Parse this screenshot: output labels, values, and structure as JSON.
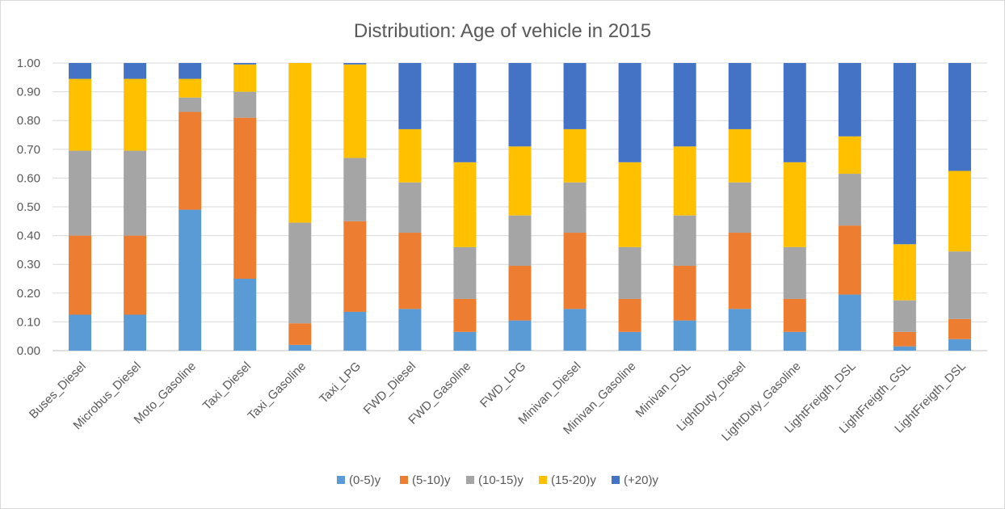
{
  "chart_data": {
    "type": "bar",
    "stacked": true,
    "title": "Distribution: Age of vehicle in 2015",
    "xlabel": "",
    "ylabel": "",
    "ylim": [
      0,
      1
    ],
    "yticks": [
      "0.00",
      "0.10",
      "0.20",
      "0.30",
      "0.40",
      "0.50",
      "0.60",
      "0.70",
      "0.80",
      "0.90",
      "1.00"
    ],
    "grid": true,
    "legend_position": "bottom",
    "categories": [
      "Buses_Diesel",
      "Microbus_Diesel",
      "Moto_Gasoline",
      "Taxi_Diesel",
      "Taxi_Gasoline",
      "Taxi_LPG",
      "FWD_Diesel",
      "FWD_Gasoline",
      "FWD_LPG",
      "Minivan_Diesel",
      "Minivan_Gasoline",
      "Minivan_DSL",
      "LightDuty_Diesel",
      "LightDuty_Gasoline",
      "LightFreigth_DSL",
      "LightFreigth_GSL",
      "LightFreigth_DSL"
    ],
    "series": [
      {
        "name": "(0-5)y",
        "color": "#5B9BD5",
        "values": [
          0.125,
          0.125,
          0.49,
          0.25,
          0.02,
          0.135,
          0.145,
          0.065,
          0.105,
          0.145,
          0.065,
          0.105,
          0.145,
          0.065,
          0.195,
          0.015,
          0.04
        ]
      },
      {
        "name": "(5-10)y",
        "color": "#ED7D31",
        "values": [
          0.275,
          0.275,
          0.34,
          0.56,
          0.075,
          0.315,
          0.265,
          0.115,
          0.19,
          0.265,
          0.115,
          0.19,
          0.265,
          0.115,
          0.24,
          0.05,
          0.07
        ]
      },
      {
        "name": "(10-15)y",
        "color": "#A5A5A5",
        "values": [
          0.295,
          0.295,
          0.05,
          0.09,
          0.35,
          0.22,
          0.175,
          0.18,
          0.175,
          0.175,
          0.18,
          0.175,
          0.175,
          0.18,
          0.18,
          0.11,
          0.235
        ]
      },
      {
        "name": "(15-20)y",
        "color": "#FFC000",
        "values": [
          0.25,
          0.25,
          0.065,
          0.095,
          0.555,
          0.325,
          0.185,
          0.295,
          0.24,
          0.185,
          0.295,
          0.24,
          0.185,
          0.295,
          0.13,
          0.195,
          0.28
        ]
      },
      {
        "name": "(+20)y",
        "color": "#4472C4",
        "values": [
          0.055,
          0.055,
          0.055,
          0.005,
          0.0,
          0.005,
          0.23,
          0.345,
          0.29,
          0.23,
          0.345,
          0.29,
          0.23,
          0.345,
          0.255,
          0.63,
          0.375
        ]
      }
    ]
  }
}
